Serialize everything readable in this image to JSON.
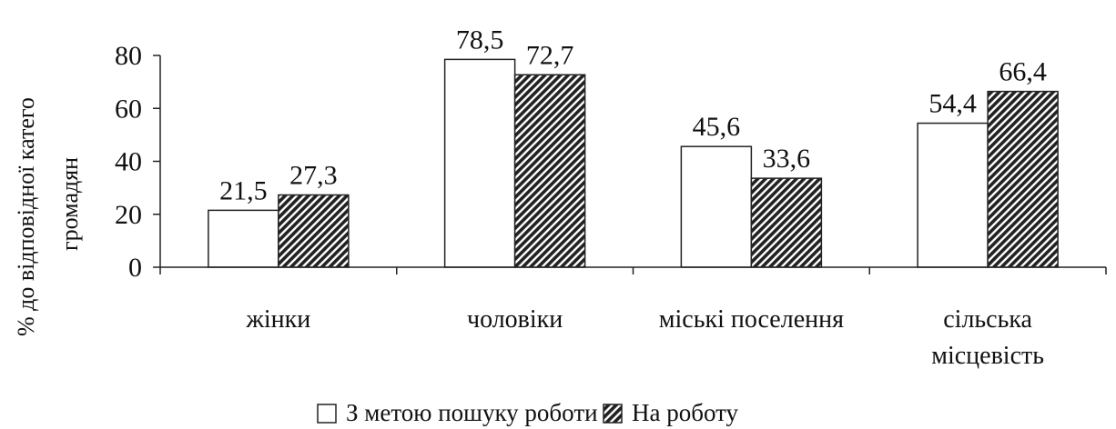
{
  "chart_data": {
    "type": "bar",
    "title": "",
    "xlabel": "",
    "ylabel_lines": [
      "% до відповідної катего",
      "громадян"
    ],
    "ylim": [
      0,
      80
    ],
    "yticks": [
      0,
      20,
      40,
      60,
      80
    ],
    "grid": false,
    "legend_position": "bottom",
    "categories": [
      [
        "жінки"
      ],
      [
        "чоловіки"
      ],
      [
        "міські поселення"
      ],
      [
        "сільська",
        "місцевість"
      ]
    ],
    "series": [
      {
        "name": "З метою пошуку роботи",
        "fill": "#ffffff",
        "pattern": "none",
        "values": [
          21.5,
          78.5,
          45.6,
          54.4
        ],
        "labels": [
          "21,5",
          "78,5",
          "45,6",
          "54,4"
        ]
      },
      {
        "name": "На роботу",
        "fill": "#2a2a2a",
        "pattern": "diagonal-hatch",
        "values": [
          27.3,
          72.7,
          33.6,
          66.4
        ],
        "labels": [
          "27,3",
          "72,7",
          "33,6",
          "66,4"
        ]
      }
    ]
  }
}
